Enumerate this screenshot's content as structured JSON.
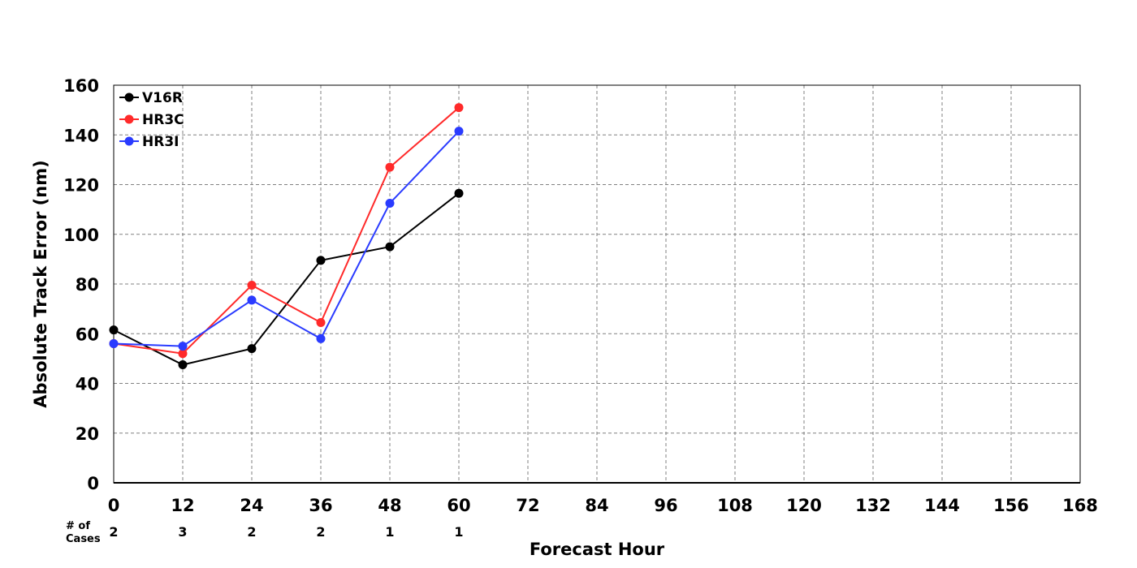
{
  "chart_data": {
    "type": "line",
    "title": "",
    "xlabel": "Forecast Hour",
    "ylabel": "Absolute Track Error (nm)",
    "xlim": [
      0,
      168
    ],
    "ylim": [
      0,
      160
    ],
    "x_ticks": [
      0,
      12,
      24,
      36,
      48,
      60,
      72,
      84,
      96,
      108,
      120,
      132,
      144,
      156,
      168
    ],
    "y_ticks": [
      0,
      20,
      40,
      60,
      80,
      100,
      120,
      140,
      160
    ],
    "grid": true,
    "legend_position": "top-left",
    "series": [
      {
        "name": "V16R",
        "color": "#000000",
        "x": [
          0,
          12,
          24,
          36,
          48,
          60
        ],
        "y": [
          61.5,
          47.5,
          54,
          89.5,
          95,
          116.5
        ]
      },
      {
        "name": "HR3C",
        "color": "#ff2a2a",
        "x": [
          0,
          12,
          24,
          36,
          48,
          60
        ],
        "y": [
          56,
          52,
          79.5,
          64.5,
          127,
          151
        ]
      },
      {
        "name": "HR3I",
        "color": "#2a3bff",
        "x": [
          0,
          12,
          24,
          36,
          48,
          60
        ],
        "y": [
          56,
          55,
          73.5,
          58,
          112.5,
          141.5
        ]
      }
    ],
    "cases": {
      "label_line1": "# of",
      "label_line2": "Cases",
      "x": [
        0,
        12,
        24,
        36,
        48,
        60
      ],
      "values": [
        "2",
        "3",
        "2",
        "2",
        "1",
        "1"
      ]
    }
  }
}
